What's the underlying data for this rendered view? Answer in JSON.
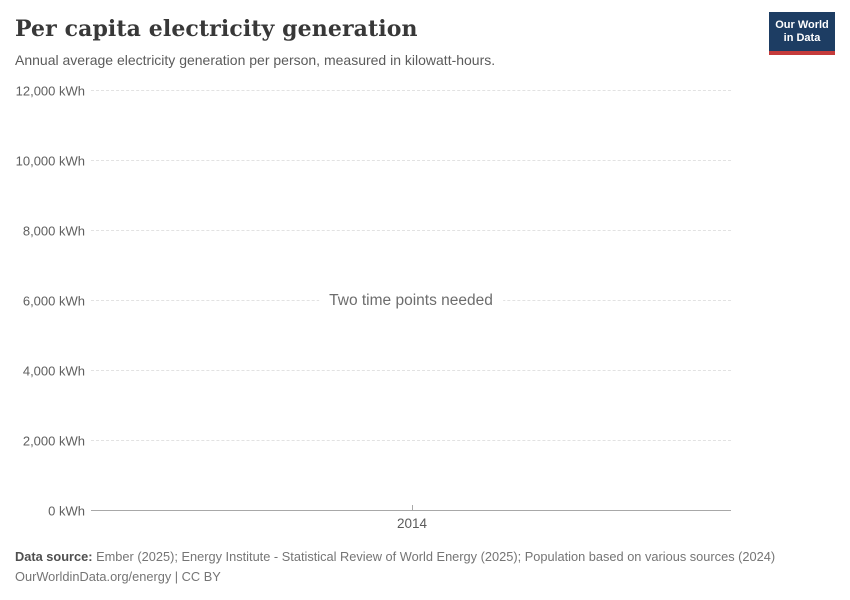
{
  "header": {
    "title": "Per capita electricity generation",
    "subtitle": "Annual average electricity generation per person, measured in kilowatt-hours.",
    "logo": {
      "line1": "Our World",
      "line2": "in Data"
    }
  },
  "chart": {
    "empty_message": "Two time points needed",
    "y_ticks": [
      {
        "label": "12,000 kWh",
        "value": 12000
      },
      {
        "label": "10,000 kWh",
        "value": 10000
      },
      {
        "label": "8,000 kWh",
        "value": 8000
      },
      {
        "label": "6,000 kWh",
        "value": 6000
      },
      {
        "label": "4,000 kWh",
        "value": 4000
      },
      {
        "label": "2,000 kWh",
        "value": 2000
      },
      {
        "label": "0 kWh",
        "value": 0
      }
    ],
    "x_tick_label": "2014"
  },
  "footer": {
    "datasource_label": "Data source:",
    "datasource_text": "Ember (2025); Energy Institute - Statistical Review of World Energy (2025); Population based on various sources (2024)",
    "link_line": "OurWorldinData.org/energy | CC BY"
  },
  "colors": {
    "logo_bg": "#1d3d63",
    "logo_stripe": "#c53b3b"
  },
  "chart_data": {
    "type": "line",
    "title": "Per capita electricity generation",
    "subtitle": "Annual average electricity generation per person, measured in kilowatt-hours.",
    "x": [
      2014
    ],
    "xticks": [
      2014
    ],
    "series": [],
    "ylabel": "kWh",
    "ylim": [
      0,
      12000
    ],
    "yticks": [
      0,
      2000,
      4000,
      6000,
      8000,
      10000,
      12000
    ],
    "grid": true,
    "legend": "none",
    "annotations": [
      "Two time points needed"
    ]
  }
}
